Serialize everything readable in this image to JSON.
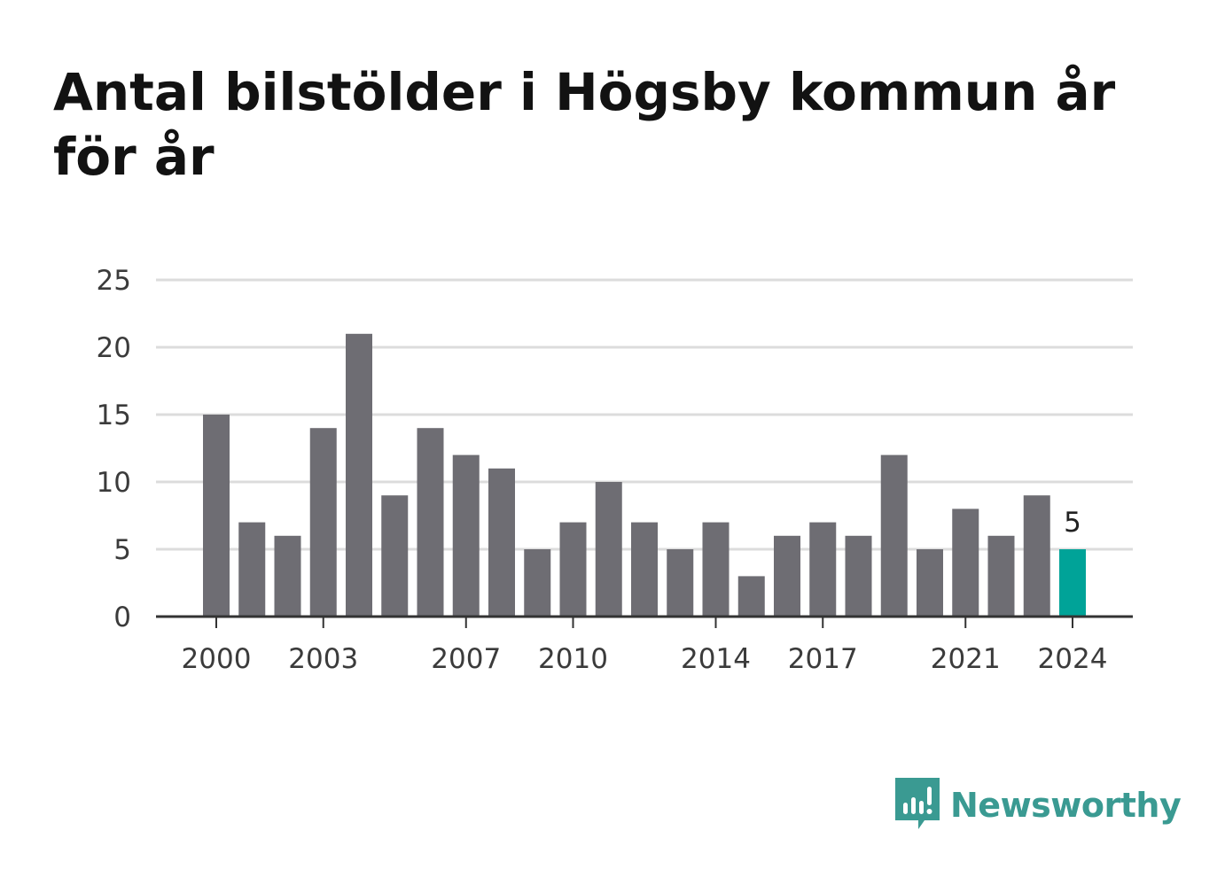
{
  "chart_data": {
    "type": "bar",
    "title": "Antal bilstölder i Högsby kommun år för år",
    "x": [
      2000,
      2001,
      2002,
      2003,
      2004,
      2005,
      2006,
      2007,
      2008,
      2009,
      2010,
      2011,
      2012,
      2013,
      2014,
      2015,
      2016,
      2017,
      2018,
      2019,
      2020,
      2021,
      2022,
      2023,
      2024
    ],
    "values": [
      15,
      7,
      6,
      14,
      21,
      9,
      14,
      12,
      11,
      5,
      7,
      10,
      7,
      5,
      7,
      3,
      6,
      7,
      6,
      12,
      5,
      8,
      6,
      9,
      5
    ],
    "x_tick_labels": [
      "2000",
      "2003",
      "2007",
      "2010",
      "2014",
      "2017",
      "2021",
      "2024"
    ],
    "y_ticks": [
      0,
      5,
      10,
      15,
      20,
      25
    ],
    "ylim": [
      0,
      25
    ],
    "xlabel": "",
    "ylabel": "",
    "grid": true,
    "highlight": {
      "x": 2024,
      "label": "5"
    },
    "colors": {
      "bar": "#6e6d73",
      "highlight": "#00a398",
      "grid": "#dcdcdc",
      "axis": "#333333"
    }
  },
  "branding": {
    "logo_text": "Newsworthy",
    "logo_icon": "chart-speech-bubble-icon",
    "logo_color": "#3a9a92"
  }
}
